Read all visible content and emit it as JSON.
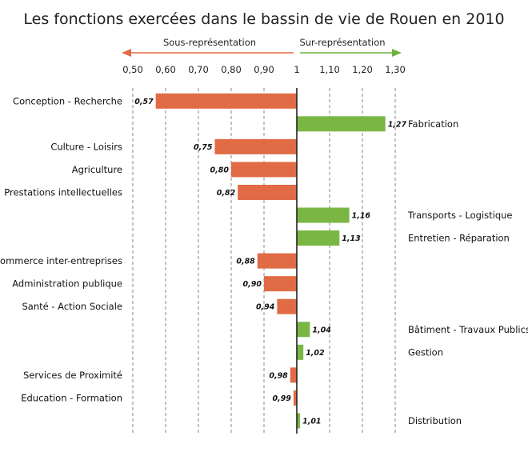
{
  "chart_data": {
    "type": "bar",
    "orientation": "horizontal",
    "title": "Les fonctions exercées dans le bassin de vie de Rouen en 2010",
    "direction_labels": {
      "under": "Sous-représentation",
      "over": "Sur-représentation"
    },
    "xlim": [
      0.5,
      1.3
    ],
    "baseline": 1,
    "ticks": [
      {
        "v": 0.5,
        "label": "0,50"
      },
      {
        "v": 0.6,
        "label": "0,60"
      },
      {
        "v": 0.7,
        "label": "0,70"
      },
      {
        "v": 0.8,
        "label": "0,80"
      },
      {
        "v": 0.9,
        "label": "0,90"
      },
      {
        "v": 1.0,
        "label": "1"
      },
      {
        "v": 1.1,
        "label": "1,10"
      },
      {
        "v": 1.2,
        "label": "1,20"
      },
      {
        "v": 1.3,
        "label": "1,30"
      }
    ],
    "categories": [
      "Conception - Recherche",
      "Fabrication",
      "Culture - Loisirs",
      "Agriculture",
      "Prestations intellectuelles",
      "Transports - Logistique",
      "Entretien - Réparation",
      "Commerce inter-entreprises",
      "Administration publique",
      "Santé - Action Sociale",
      "Bâtiment - Travaux Publics",
      "Gestion",
      "Services de Proximité",
      "Education - Formation",
      "Distribution"
    ],
    "values": [
      0.57,
      1.27,
      0.75,
      0.8,
      0.82,
      1.16,
      1.13,
      0.88,
      0.9,
      0.94,
      1.04,
      1.02,
      0.98,
      0.99,
      1.01
    ],
    "value_labels": [
      "0,57",
      "1,27",
      "0,75",
      "0,80",
      "0,82",
      "1,16",
      "1,13",
      "0,88",
      "0,90",
      "0,94",
      "1,04",
      "1,02",
      "0,98",
      "0,99",
      "1,01"
    ],
    "grid": true,
    "colors": {
      "under": "#e06b45",
      "over": "#7ab644",
      "under_arrow": "#e06b45",
      "over_arrow": "#6fb03e",
      "axis": "#222222",
      "grid": "#888888"
    }
  }
}
